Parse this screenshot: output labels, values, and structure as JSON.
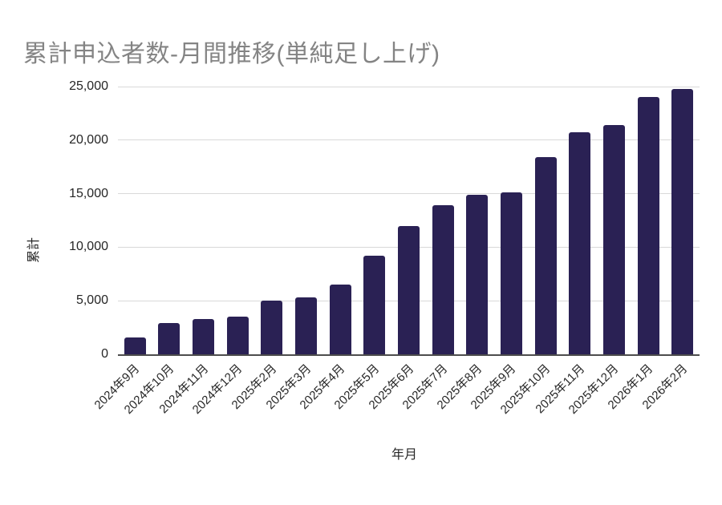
{
  "page": {
    "background": "#ffffff"
  },
  "chart_data": {
    "type": "bar",
    "title": "累計申込者数-月間推移(単純足し上げ)",
    "xlabel": "年月",
    "ylabel": "累計",
    "categories": [
      "2024年9月",
      "2024年10月",
      "2024年11月",
      "2024年12月",
      "2025年2月",
      "2025年3月",
      "2025年4月",
      "2025年5月",
      "2025年6月",
      "2025年7月",
      "2025年8月",
      "2025年9月",
      "2025年10月",
      "2025年11月",
      "2025年12月",
      "2026年1月",
      "2026年2月"
    ],
    "values": [
      1600,
      2900,
      3300,
      3500,
      5000,
      5300,
      6500,
      9200,
      12000,
      13900,
      14900,
      15100,
      18400,
      20700,
      21400,
      24000,
      24800
    ],
    "y_ticks": [
      {
        "value": 0,
        "label": "0"
      },
      {
        "value": 5000,
        "label": "5,000"
      },
      {
        "value": 10000,
        "label": "10,000"
      },
      {
        "value": 15000,
        "label": "15,000"
      },
      {
        "value": 20000,
        "label": "20,000"
      },
      {
        "value": 25000,
        "label": "25,000"
      }
    ],
    "ylim": [
      0,
      25000
    ],
    "grid": true,
    "legend": "none",
    "colors": {
      "bar": "#2a2154",
      "title_text": "#848484",
      "axis_text": "#262626",
      "gridline": "#d9d9d9",
      "baseline": "#4d4d4d"
    }
  }
}
